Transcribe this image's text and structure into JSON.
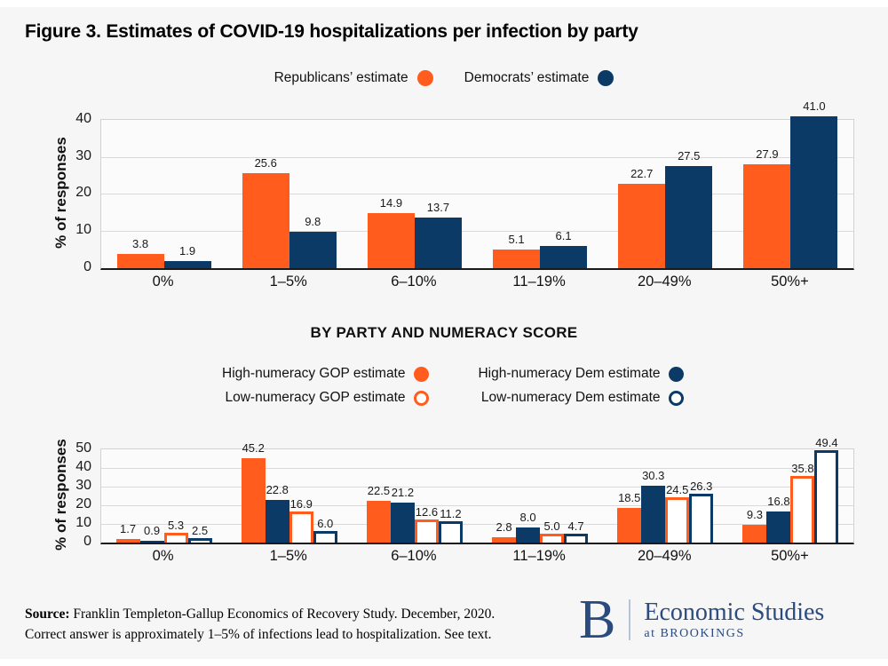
{
  "figure": {
    "title": "Figure 3. Estimates of COVID-19 hospitalizations per infection by party"
  },
  "chart_data": [
    {
      "type": "bar",
      "ylabel": "% of responses",
      "ylim": [
        0,
        40
      ],
      "yticks": [
        0,
        10,
        20,
        30,
        40
      ],
      "grid": true,
      "legend_position": "top-center",
      "categories": [
        "0%",
        "1–5%",
        "6–10%",
        "11–19%",
        "20–49%",
        "50%+"
      ],
      "series": [
        {
          "name": "Republicans’ estimate",
          "style": "solid",
          "color": "#ff5c1e",
          "values": [
            3.8,
            25.6,
            14.9,
            5.1,
            22.7,
            27.9
          ]
        },
        {
          "name": "Democrats’ estimate",
          "style": "solid",
          "color": "#0b3a67",
          "values": [
            1.9,
            9.8,
            13.7,
            6.1,
            27.5,
            41.0
          ]
        }
      ]
    },
    {
      "type": "bar",
      "subtitle": "BY PARTY AND NUMERACY SCORE",
      "ylabel": "% of responses",
      "ylim": [
        0,
        50
      ],
      "yticks": [
        0,
        10,
        20,
        30,
        40,
        50
      ],
      "grid": true,
      "legend_position": "top-center-two-rows",
      "categories": [
        "0%",
        "1–5%",
        "6–10%",
        "11–19%",
        "20–49%",
        "50%+"
      ],
      "series": [
        {
          "name": "High-numeracy GOP estimate",
          "style": "solid",
          "color": "#ff5c1e",
          "values": [
            1.7,
            45.2,
            22.5,
            2.8,
            18.5,
            9.3
          ]
        },
        {
          "name": "High-numeracy Dem estimate",
          "style": "solid",
          "color": "#0b3a67",
          "values": [
            0.9,
            22.8,
            21.2,
            8.0,
            30.3,
            16.8
          ]
        },
        {
          "name": "Low-numeracy GOP estimate",
          "style": "outline",
          "color": "#ff5c1e",
          "values": [
            5.3,
            16.9,
            12.6,
            5.0,
            24.5,
            35.8
          ]
        },
        {
          "name": "Low-numeracy Dem estimate",
          "style": "outline",
          "color": "#0b3a67",
          "values": [
            2.5,
            6.0,
            11.2,
            4.7,
            26.3,
            49.4
          ]
        }
      ]
    }
  ],
  "footer": {
    "source_label": "Source:",
    "source_rest": " Franklin Templeton-Gallup Economics of Recovery Study. December, 2020.",
    "line2": "Correct answer is approximately 1–5% of infections lead to hospitalization. See text."
  },
  "logo": {
    "mark": "B",
    "name": "Economic Studies",
    "sub": "at BROOKINGS"
  },
  "colors": {
    "orange": "#ff5c1e",
    "navy": "#0b3a67",
    "logo_navy": "#2b4a7d",
    "grid": "#dadada",
    "plot_bg": "#fbfbfb",
    "page_bg": "#f6f6f6"
  }
}
